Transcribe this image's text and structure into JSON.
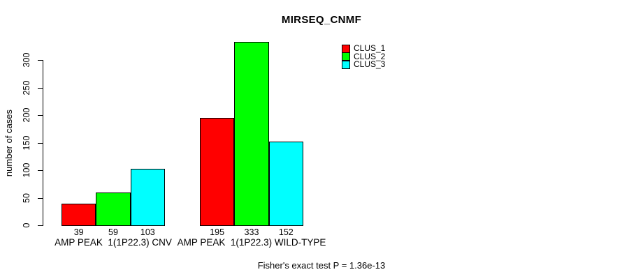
{
  "chart_data": {
    "type": "bar",
    "title": "MIRSEQ_CNMF",
    "xlabel": "",
    "ylabel": "number of cases",
    "ylim": [
      0,
      340
    ],
    "yticks": [
      0,
      50,
      100,
      150,
      200,
      250,
      300
    ],
    "grid": false,
    "legend_position": "top-right",
    "categories": [
      "AMP PEAK  1(1P22.3) CNV",
      "AMP PEAK  1(1P22.3) WILD-TYPE"
    ],
    "series": [
      {
        "name": "CLUS_1",
        "color": "#ff0000",
        "values": [
          39,
          195
        ]
      },
      {
        "name": "CLUS_2",
        "color": "#00ff00",
        "values": [
          59,
          333
        ]
      },
      {
        "name": "CLUS_3",
        "color": "#00ffff",
        "values": [
          103,
          152
        ]
      }
    ],
    "bar_value_labels": [
      [
        39,
        59,
        103
      ],
      [
        195,
        333,
        152
      ]
    ],
    "annotation": "Fisher's exact test P = 1.36e-13"
  },
  "colors": {
    "background": "#ffffff",
    "axis": "#000000",
    "text": "#000000",
    "clus_1": "#ff0000",
    "clus_2": "#00ff00",
    "clus_3": "#00ffff"
  }
}
